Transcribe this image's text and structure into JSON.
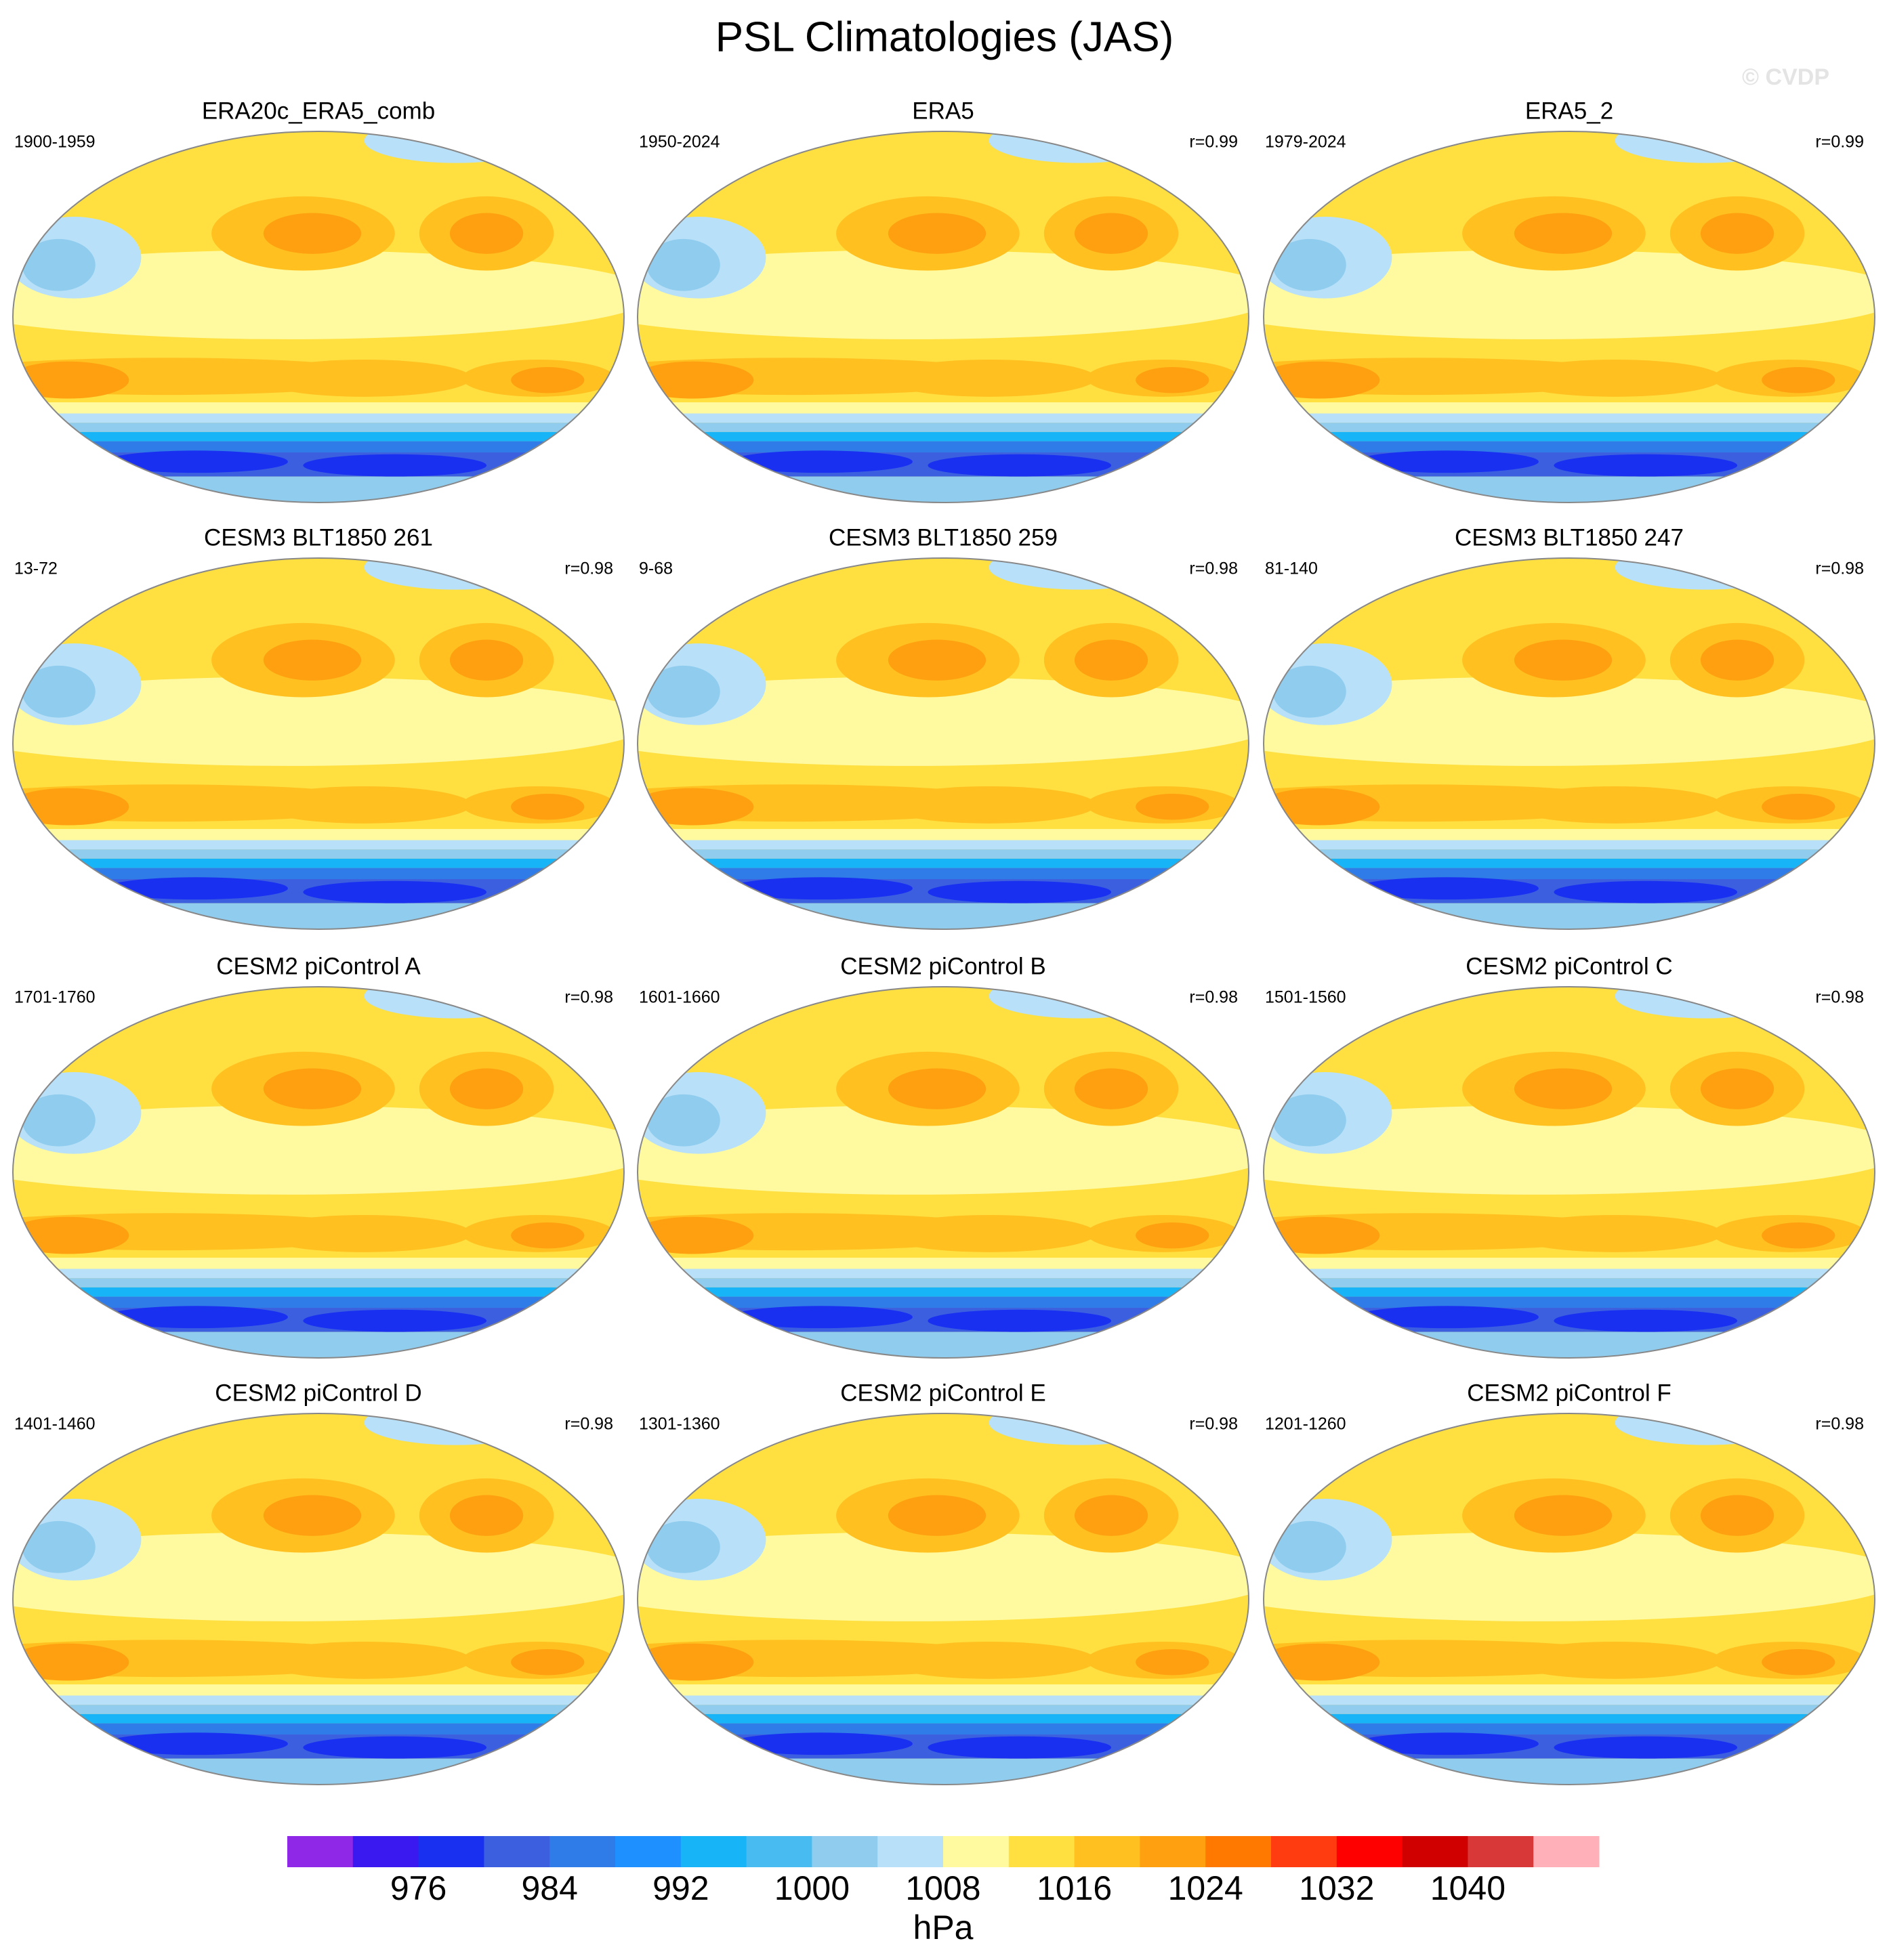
{
  "title": "PSL Climatologies (JAS)",
  "watermark": "© CVDP",
  "panels": [
    {
      "title": "ERA20c_ERA5_comb",
      "period": "1900-1959"
    },
    {
      "title": "ERA5",
      "period": "1950-2024",
      "r": "r=0.99"
    },
    {
      "title": "ERA5_2",
      "period": "1979-2024",
      "r": "r=0.99"
    },
    {
      "title": "CESM3 BLT1850 261",
      "period": "13-72",
      "r": "r=0.98"
    },
    {
      "title": "CESM3 BLT1850 259",
      "period": "9-68",
      "r": "r=0.98"
    },
    {
      "title": "CESM3 BLT1850 247",
      "period": "81-140",
      "r": "r=0.98"
    },
    {
      "title": "CESM2 piControl A",
      "period": "1701-1760",
      "r": "r=0.98"
    },
    {
      "title": "CESM2 piControl B",
      "period": "1601-1660",
      "r": "r=0.98"
    },
    {
      "title": "CESM2 piControl C",
      "period": "1501-1560",
      "r": "r=0.98"
    },
    {
      "title": "CESM2 piControl D",
      "period": "1401-1460",
      "r": "r=0.98"
    },
    {
      "title": "CESM2 piControl E",
      "period": "1301-1360",
      "r": "r=0.98"
    },
    {
      "title": "CESM2 piControl F",
      "period": "1201-1260",
      "r": "r=0.98"
    }
  ],
  "colorbar": {
    "colors": [
      "#9028e8",
      "#3a18f0",
      "#1a30f0",
      "#3c5fe0",
      "#2f7ce8",
      "#1e90ff",
      "#18b4f8",
      "#48bcf0",
      "#90ccee",
      "#b8e0f8",
      "#fffaa0",
      "#ffe040",
      "#ffc020",
      "#ffa010",
      "#ff7800",
      "#ff3c10",
      "#ff0000",
      "#d00000",
      "#d83838",
      "#ffb0b8"
    ],
    "range": [
      968,
      1048
    ],
    "ticks": [
      976,
      984,
      992,
      1000,
      1008,
      1016,
      1024,
      1032,
      1040
    ],
    "unit": "hPa"
  }
}
